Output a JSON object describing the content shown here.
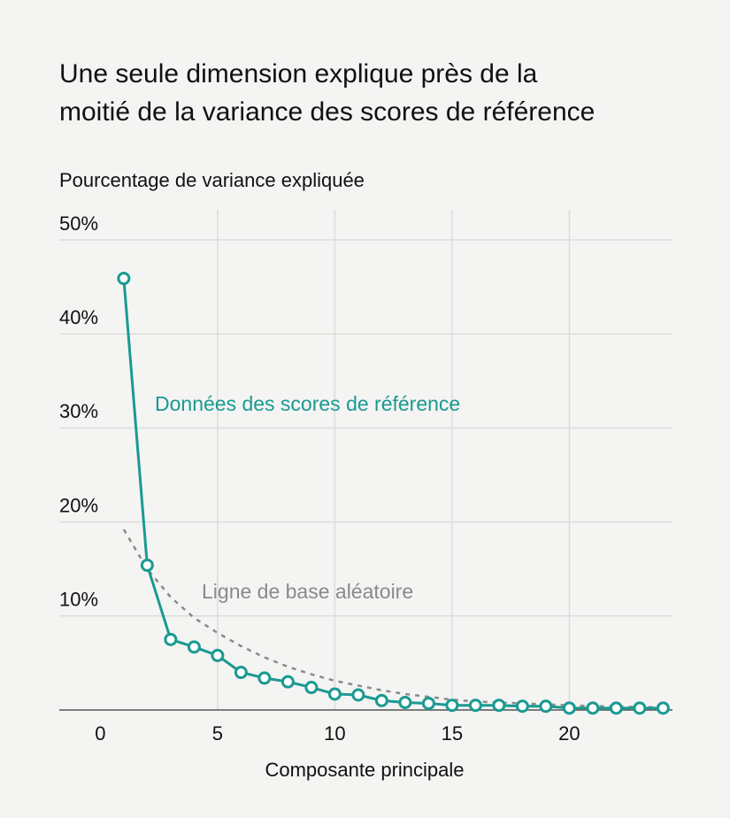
{
  "chart_data": {
    "type": "line",
    "title": [
      "Une seule dimension explique près de la",
      "moitié de la variance des scores de référence"
    ],
    "y_label": "Pourcentage de variance expliquée",
    "x_label": "Composante principale",
    "x": [
      1,
      2,
      3,
      4,
      5,
      6,
      7,
      8,
      9,
      10,
      11,
      12,
      13,
      14,
      15,
      16,
      17,
      18,
      19,
      20,
      21,
      22,
      23,
      24
    ],
    "series": [
      {
        "name": "Données des scores de référence",
        "color": "#1a9a92",
        "markers": true,
        "dashed": false,
        "values": [
          45.9,
          15.4,
          7.5,
          6.7,
          5.8,
          4.0,
          3.4,
          3.0,
          2.4,
          1.7,
          1.6,
          1.0,
          0.8,
          0.7,
          0.5,
          0.5,
          0.5,
          0.4,
          0.4,
          0.2,
          0.2,
          0.2,
          0.2,
          0.2
        ]
      },
      {
        "name": "Ligne de base aléatoire",
        "color": "#8a8a8a",
        "markers": false,
        "dashed": true,
        "values": [
          19.2,
          15.0,
          12.0,
          9.8,
          8.2,
          6.8,
          5.6,
          4.6,
          3.8,
          3.1,
          2.6,
          2.1,
          1.7,
          1.4,
          1.1,
          0.9,
          0.8,
          0.7,
          0.6,
          0.5,
          0.4,
          0.4,
          0.3,
          0.3
        ]
      }
    ],
    "xlim": [
      -1.75,
      24.4
    ],
    "ylim": [
      0,
      53.2
    ],
    "xticks": [
      0,
      5,
      10,
      15,
      20
    ],
    "yticks": [
      {
        "value": 10,
        "label": "10%"
      },
      {
        "value": 20,
        "label": "20%"
      },
      {
        "value": 30,
        "label": "30%"
      },
      {
        "value": 40,
        "label": "40%"
      },
      {
        "value": 50,
        "label": "50%"
      }
    ],
    "grid": true
  }
}
